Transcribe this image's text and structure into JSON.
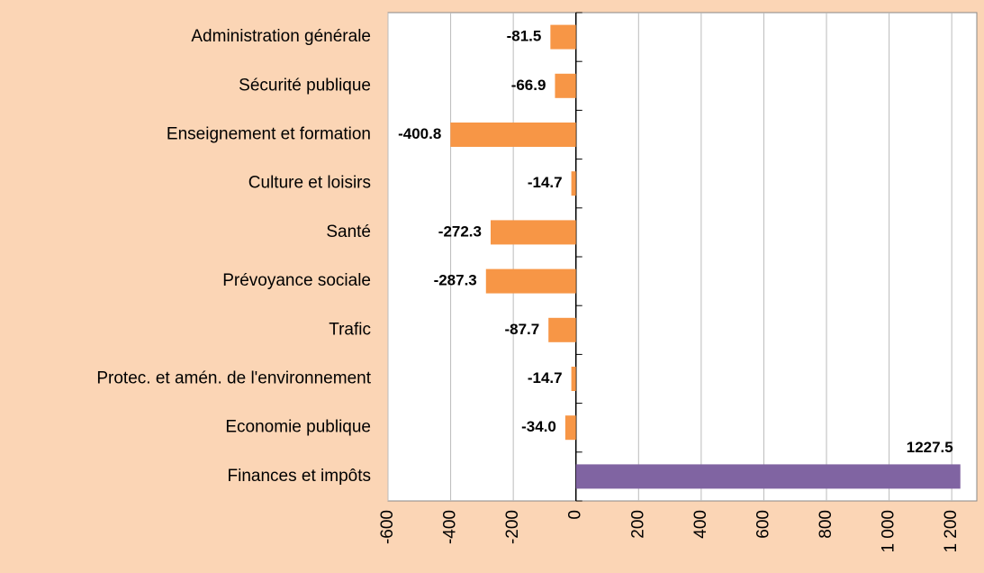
{
  "chart_data": {
    "type": "bar",
    "orientation": "horizontal",
    "categories": [
      "Administration générale",
      "Sécurité publique",
      "Enseignement et formation",
      "Culture et loisirs",
      "Santé",
      "Prévoyance sociale",
      "Trafic",
      "Protec. et amén. de l'environnement",
      "Economie publique",
      "Finances et impôts"
    ],
    "values": [
      -81.5,
      -66.9,
      -400.8,
      -14.7,
      -272.3,
      -287.3,
      -87.7,
      -14.7,
      -34.0,
      1227.5
    ],
    "value_labels": [
      "-81.5",
      "-66.9",
      "-400.8",
      "-14.7",
      "-272.3",
      "-287.3",
      "-87.7",
      "-14.7",
      "-34.0",
      "1227.5"
    ],
    "colors": [
      "#f79646",
      "#f79646",
      "#f79646",
      "#f79646",
      "#f79646",
      "#f79646",
      "#f79646",
      "#f79646",
      "#f79646",
      "#8064a2"
    ],
    "xlim": [
      -600,
      1280
    ],
    "xticks": [
      -600,
      -400,
      -200,
      0,
      200,
      400,
      600,
      800,
      {
        "value": 1000,
        "label": "1 000"
      },
      {
        "value": 1200,
        "label": "1 200"
      }
    ],
    "grid": true
  }
}
